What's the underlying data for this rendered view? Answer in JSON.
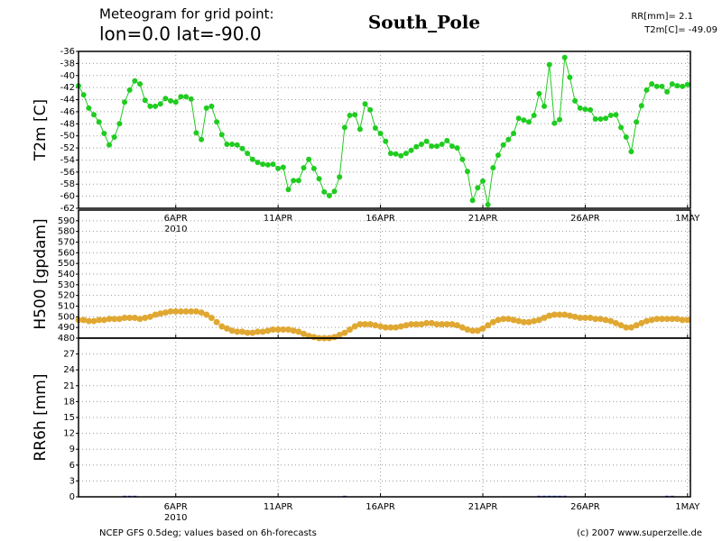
{
  "header": {
    "line1": "Meteogram for grid point:",
    "line2": "lon=0.0 lat=-90.0",
    "place": "South_Pole",
    "rr": "RR[mm]= 2.1",
    "t2m": "T2m[C]= -49.09"
  },
  "footer": {
    "left": "NCEP GFS 0.5deg; values based on 6h-forecasts",
    "right": "(c) 2007 www.superzelle.de"
  },
  "chart_data": [
    {
      "type": "line",
      "ylabel": "T2m [C]",
      "color": "#1fcc1f",
      "x": [
        1.25,
        1.5,
        1.75,
        2,
        2.25,
        2.5,
        2.75,
        3,
        3.25,
        3.5,
        3.75,
        4,
        4.25,
        4.5,
        4.75,
        5,
        5.25,
        5.5,
        5.75,
        6,
        6.25,
        6.5,
        6.75,
        7,
        7.25,
        7.5,
        7.75,
        8,
        8.25,
        8.5,
        8.75,
        9,
        9.25,
        9.5,
        9.75,
        10,
        10.25,
        10.5,
        10.75,
        11,
        11.25,
        11.5,
        11.75,
        12,
        12.25,
        12.5,
        12.75,
        13,
        13.25,
        13.5,
        13.75,
        14,
        14.25,
        14.5,
        14.75,
        15,
        15.25,
        15.5,
        15.75,
        16,
        16.25,
        16.5,
        16.75,
        17,
        17.25,
        17.5,
        17.75,
        18,
        18.25,
        18.5,
        18.75,
        19,
        19.25,
        19.5,
        19.75,
        20,
        20.25,
        20.5,
        20.75,
        21,
        21.25,
        21.5,
        21.75,
        22,
        22.25,
        22.5,
        22.75,
        23,
        23.25,
        23.5,
        23.75,
        24,
        24.25,
        24.5,
        24.75,
        25,
        25.25,
        25.5,
        25.75,
        26,
        26.25,
        26.5,
        26.75,
        27,
        27.25,
        27.5,
        27.75,
        28,
        28.25,
        28.5,
        28.75,
        29,
        29.25,
        29.5,
        29.75,
        30,
        30.25,
        30.5,
        30.75,
        31
      ],
      "values": [
        -41.7,
        -43.2,
        -45.4,
        -46.5,
        -47.7,
        -49.6,
        -51.5,
        -50.2,
        -48.0,
        -44.4,
        -42.4,
        -40.9,
        -41.4,
        -44.1,
        -45.1,
        -45.1,
        -44.7,
        -43.8,
        -44.2,
        -44.4,
        -43.5,
        -43.5,
        -43.9,
        -49.5,
        -50.6,
        -45.4,
        -45.1,
        -47.7,
        -49.8,
        -51.4,
        -51.4,
        -51.5,
        -52.1,
        -52.9,
        -53.9,
        -54.4,
        -54.7,
        -54.8,
        -54.7,
        -55.4,
        -55.2,
        -58.9,
        -57.4,
        -57.4,
        -55.3,
        -53.9,
        -55.4,
        -57.1,
        -59.3,
        -59.9,
        -59.2,
        -56.8,
        -48.6,
        -46.6,
        -46.5,
        -48.9,
        -44.7,
        -45.7,
        -48.7,
        -49.6,
        -50.9,
        -52.9,
        -53.0,
        -53.3,
        -52.9,
        -52.4,
        -51.8,
        -51.4,
        -50.9,
        -51.7,
        -51.7,
        -51.4,
        -50.8,
        -51.7,
        -52.0,
        -53.9,
        -55.9,
        -60.7,
        -58.6,
        -57.5,
        -61.4,
        -55.3,
        -53.2,
        -51.5,
        -50.6,
        -49.6,
        -47.1,
        -47.4,
        -47.7,
        -46.6,
        -43.0,
        -45.1,
        -38.2,
        -47.9,
        -47.3,
        -37.0,
        -40.3,
        -44.2,
        -45.4,
        -45.6,
        -45.7,
        -47.2,
        -47.2,
        -47.1,
        -46.6,
        -46.5,
        -48.6,
        -50.2,
        -52.6,
        -47.7,
        -45.0,
        -42.4,
        -41.4,
        -41.8,
        -41.8,
        -42.7,
        -41.4,
        -41.7,
        -41.8,
        -41.5
      ],
      "xlim": [
        1.25,
        31.14
      ],
      "xticks": [
        {
          "value": 6,
          "label": "6APR"
        },
        {
          "value": 11,
          "label": "11APR"
        },
        {
          "value": 16,
          "label": "16APR"
        },
        {
          "value": 21,
          "label": "21APR"
        },
        {
          "value": 26,
          "label": "26APR"
        },
        {
          "value": 31,
          "label": "1MAY"
        }
      ],
      "x_sublabel": "2010",
      "ylim": [
        -62,
        -36
      ],
      "yticks": [
        -36,
        -38,
        -40,
        -42,
        -44,
        -46,
        -48,
        -50,
        -52,
        -54,
        -56,
        -58,
        -60,
        -62
      ],
      "grid": true
    },
    {
      "type": "scatter",
      "ylabel": "H500 [gpdam]",
      "color": "#e0a832",
      "x": [
        1.25,
        1.5,
        1.75,
        2,
        2.25,
        2.5,
        2.75,
        3,
        3.25,
        3.5,
        3.75,
        4,
        4.25,
        4.5,
        4.75,
        5,
        5.25,
        5.5,
        5.75,
        6,
        6.25,
        6.5,
        6.75,
        7,
        7.25,
        7.5,
        7.75,
        8,
        8.25,
        8.5,
        8.75,
        9,
        9.25,
        9.5,
        9.75,
        10,
        10.25,
        10.5,
        10.75,
        11,
        11.25,
        11.5,
        11.75,
        12,
        12.25,
        12.5,
        12.75,
        13,
        13.25,
        13.5,
        13.75,
        14,
        14.25,
        14.5,
        14.75,
        15,
        15.25,
        15.5,
        15.75,
        16,
        16.25,
        16.5,
        16.75,
        17,
        17.25,
        17.5,
        17.75,
        18,
        18.25,
        18.5,
        18.75,
        19,
        19.25,
        19.5,
        19.75,
        20,
        20.25,
        20.5,
        20.75,
        21,
        21.25,
        21.5,
        21.75,
        22,
        22.25,
        22.5,
        22.75,
        23,
        23.25,
        23.5,
        23.75,
        24,
        24.25,
        24.5,
        24.75,
        25,
        25.25,
        25.5,
        25.75,
        26,
        26.25,
        26.5,
        26.75,
        27,
        27.25,
        27.5,
        27.75,
        28,
        28.25,
        28.5,
        28.75,
        29,
        29.25,
        29.5,
        29.75,
        30,
        30.25,
        30.5,
        30.75,
        31
      ],
      "values": [
        497,
        497,
        496,
        496,
        497,
        497,
        498,
        498,
        498,
        499,
        499,
        499,
        498,
        499,
        500,
        502,
        503,
        504,
        505,
        505,
        505,
        505,
        505,
        505,
        504,
        502,
        499,
        495,
        491,
        489,
        487,
        486,
        486,
        485,
        485,
        486,
        486,
        487,
        488,
        488,
        488,
        488,
        487,
        486,
        484,
        482,
        481,
        480,
        480,
        480,
        481,
        483,
        485,
        488,
        491,
        493,
        493,
        493,
        492,
        491,
        490,
        490,
        490,
        491,
        492,
        493,
        493,
        493,
        494,
        494,
        493,
        493,
        493,
        493,
        492,
        490,
        488,
        487,
        487,
        489,
        492,
        495,
        497,
        498,
        498,
        497,
        496,
        495,
        495,
        496,
        497,
        499,
        501,
        502,
        502,
        502,
        501,
        500,
        499,
        499,
        499,
        498,
        498,
        497,
        496,
        494,
        492,
        490,
        490,
        492,
        494,
        496,
        497,
        498,
        498,
        498,
        498,
        498,
        497,
        497
      ],
      "xlim": [
        1.25,
        31.14
      ],
      "xticks": [
        6,
        11,
        16,
        21,
        26,
        31
      ],
      "ylim": [
        480,
        600
      ],
      "yticks": [
        480,
        490,
        500,
        510,
        520,
        530,
        540,
        550,
        560,
        570,
        580,
        590
      ],
      "grid": true
    },
    {
      "type": "bar",
      "ylabel": "RR6h [mm]",
      "color": "#2040ff",
      "x": [
        1.25,
        1.5,
        1.75,
        2,
        2.25,
        2.5,
        2.75,
        3,
        3.25,
        3.5,
        3.75,
        4,
        4.25,
        4.5,
        4.75,
        5,
        5.25,
        5.5,
        5.75,
        6,
        6.25,
        6.5,
        6.75,
        7,
        7.25,
        7.5,
        7.75,
        8,
        8.25,
        8.5,
        8.75,
        9,
        9.25,
        9.5,
        9.75,
        10,
        10.25,
        10.5,
        10.75,
        11,
        11.25,
        11.5,
        11.75,
        12,
        12.25,
        12.5,
        12.75,
        13,
        13.25,
        13.5,
        13.75,
        14,
        14.25,
        14.5,
        14.75,
        15,
        15.25,
        15.5,
        15.75,
        16,
        16.25,
        16.5,
        16.75,
        17,
        17.25,
        17.5,
        17.75,
        18,
        18.25,
        18.5,
        18.75,
        19,
        19.25,
        19.5,
        19.75,
        20,
        20.25,
        20.5,
        20.75,
        21,
        21.25,
        21.5,
        21.75,
        22,
        22.25,
        22.5,
        22.75,
        23,
        23.25,
        23.5,
        23.75,
        24,
        24.25,
        24.5,
        24.75,
        25,
        25.25,
        25.5,
        25.75,
        26,
        26.25,
        26.5,
        26.75,
        27,
        27.25,
        27.5,
        27.75,
        28,
        28.25,
        28.5,
        28.75,
        29,
        29.25,
        29.5,
        29.75,
        30,
        30.25,
        30.5,
        30.75,
        31
      ],
      "values": [
        0,
        0,
        0,
        0,
        0,
        0,
        0,
        0,
        0,
        0.2,
        0.2,
        0.2,
        0,
        0,
        0,
        0,
        0,
        0,
        0,
        0,
        0,
        0,
        0,
        0,
        0,
        0,
        0,
        0,
        0,
        0,
        0,
        0,
        0,
        0,
        0,
        0,
        0,
        0,
        0,
        0,
        0,
        0,
        0,
        0,
        0,
        0,
        0,
        0,
        0,
        0,
        0,
        0,
        0.2,
        0,
        0,
        0,
        0,
        0,
        0,
        0,
        0,
        0,
        0,
        0,
        0,
        0,
        0,
        0,
        0,
        0,
        0,
        0,
        0,
        0,
        0,
        0,
        0,
        0,
        0,
        0,
        0,
        0,
        0,
        0,
        0,
        0,
        0,
        0,
        0,
        0,
        0.2,
        0.2,
        0.2,
        0.2,
        0.2,
        0.2,
        0,
        0,
        0,
        0,
        0,
        0,
        0,
        0,
        0,
        0,
        0,
        0,
        0,
        0,
        0,
        0,
        0,
        0,
        0,
        0.2,
        0.2,
        0,
        0,
        0
      ],
      "xlim": [
        1.25,
        31.14
      ],
      "xticks": [
        {
          "value": 6,
          "label": "6APR"
        },
        {
          "value": 11,
          "label": "11APR"
        },
        {
          "value": 16,
          "label": "16APR"
        },
        {
          "value": 21,
          "label": "21APR"
        },
        {
          "value": 26,
          "label": "26APR"
        },
        {
          "value": 31,
          "label": "1MAY"
        }
      ],
      "x_sublabel": "2010",
      "ylim": [
        0,
        30
      ],
      "yticks": [
        0,
        3,
        6,
        9,
        12,
        15,
        18,
        21,
        24,
        27
      ],
      "grid": true
    }
  ]
}
